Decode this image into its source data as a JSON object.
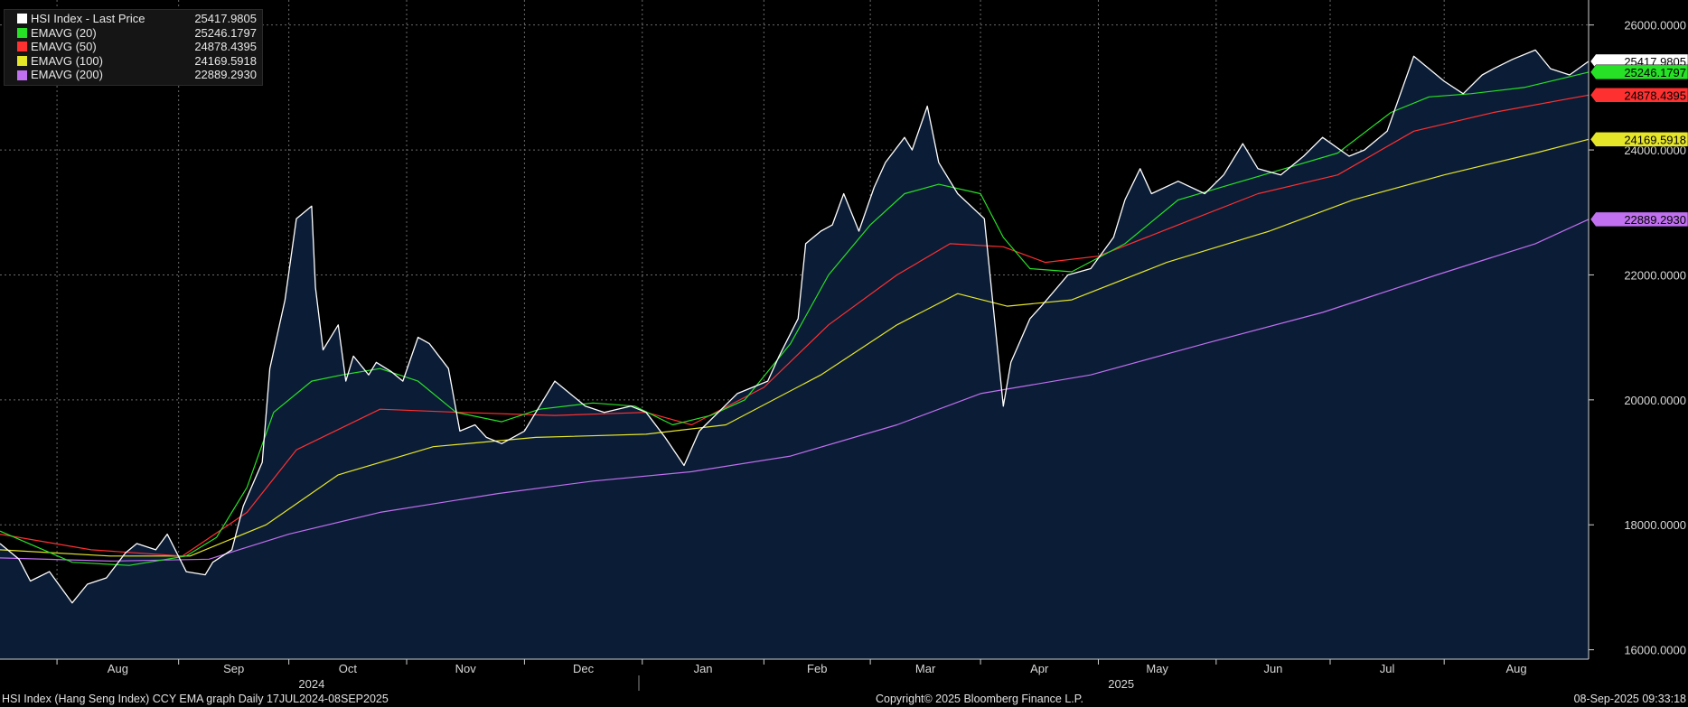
{
  "chart_data": {
    "type": "line",
    "title": "HSI Index (Hang Seng Index) CCY EMA graph  Daily 17JUL2024-08SEP2025",
    "ylim": [
      15850,
      26400
    ],
    "y_ticks": [
      "16000.0000",
      "18000.0000",
      "20000.0000",
      "22000.0000",
      "24000.0000",
      "26000.0000"
    ],
    "y_tick_values": [
      16000,
      18000,
      20000,
      22000,
      24000,
      26000
    ],
    "x_range": [
      "2024-07-17",
      "2025-09-08"
    ],
    "month_ticks": [
      {
        "label": "Aug",
        "date": "2024-08-01"
      },
      {
        "label": "Sep",
        "date": "2024-09-02"
      },
      {
        "label": "Oct",
        "date": "2024-10-01"
      },
      {
        "label": "Nov",
        "date": "2024-11-01"
      },
      {
        "label": "Dec",
        "date": "2024-12-02"
      },
      {
        "label": "Jan",
        "date": "2025-01-02"
      },
      {
        "label": "Feb",
        "date": "2025-02-03"
      },
      {
        "label": "Mar",
        "date": "2025-03-03"
      },
      {
        "label": "Apr",
        "date": "2025-04-01"
      },
      {
        "label": "May",
        "date": "2025-05-02"
      },
      {
        "label": "Jun",
        "date": "2025-06-02"
      },
      {
        "label": "Jul",
        "date": "2025-07-02"
      },
      {
        "label": "Aug",
        "date": "2025-08-01"
      }
    ],
    "year_labels": [
      {
        "label": "2024",
        "date": "2024-10-07"
      },
      {
        "label": "2025",
        "date": "2025-05-08"
      }
    ],
    "grid": true,
    "legend_position": "top-left",
    "series": [
      {
        "name": "HSI Index - Last Price",
        "color": "#ffffff",
        "last": "25417.9805",
        "filled": true,
        "x": [
          "2024-07-17",
          "2024-07-22",
          "2024-07-25",
          "2024-07-30",
          "2024-08-05",
          "2024-08-09",
          "2024-08-14",
          "2024-08-19",
          "2024-08-22",
          "2024-08-27",
          "2024-08-30",
          "2024-09-04",
          "2024-09-09",
          "2024-09-11",
          "2024-09-16",
          "2024-09-19",
          "2024-09-24",
          "2024-09-26",
          "2024-09-30",
          "2024-10-03",
          "2024-10-07",
          "2024-10-08",
          "2024-10-10",
          "2024-10-14",
          "2024-10-16",
          "2024-10-18",
          "2024-10-22",
          "2024-10-24",
          "2024-10-28",
          "2024-10-31",
          "2024-11-04",
          "2024-11-07",
          "2024-11-12",
          "2024-11-15",
          "2024-11-19",
          "2024-11-22",
          "2024-11-26",
          "2024-12-02",
          "2024-12-06",
          "2024-12-10",
          "2024-12-13",
          "2024-12-18",
          "2024-12-23",
          "2024-12-30",
          "2025-01-03",
          "2025-01-08",
          "2025-01-13",
          "2025-01-17",
          "2025-01-22",
          "2025-01-27",
          "2025-02-04",
          "2025-02-07",
          "2025-02-12",
          "2025-02-14",
          "2025-02-18",
          "2025-02-21",
          "2025-02-24",
          "2025-02-28",
          "2025-03-04",
          "2025-03-07",
          "2025-03-12",
          "2025-03-14",
          "2025-03-18",
          "2025-03-21",
          "2025-03-26",
          "2025-04-02",
          "2025-04-07",
          "2025-04-09",
          "2025-04-14",
          "2025-04-17",
          "2025-04-24",
          "2025-04-30",
          "2025-05-06",
          "2025-05-09",
          "2025-05-13",
          "2025-05-16",
          "2025-05-23",
          "2025-05-30",
          "2025-06-04",
          "2025-06-09",
          "2025-06-13",
          "2025-06-19",
          "2025-06-25",
          "2025-06-30",
          "2025-07-07",
          "2025-07-11",
          "2025-07-17",
          "2025-07-24",
          "2025-07-28",
          "2025-08-01",
          "2025-08-06",
          "2025-08-11",
          "2025-08-14",
          "2025-08-19",
          "2025-08-25",
          "2025-08-29",
          "2025-09-03",
          "2025-09-08"
        ],
        "y": [
          17700,
          17450,
          17100,
          17250,
          16750,
          17050,
          17150,
          17550,
          17700,
          17600,
          17850,
          17250,
          17200,
          17400,
          17600,
          18300,
          19000,
          20500,
          21600,
          22900,
          23100,
          21800,
          20800,
          21200,
          20300,
          20700,
          20400,
          20600,
          20450,
          20300,
          21000,
          20900,
          20500,
          19500,
          19600,
          19400,
          19300,
          19500,
          19900,
          20300,
          20150,
          19900,
          19800,
          19900,
          19800,
          19400,
          18950,
          19500,
          19800,
          20100,
          20300,
          20700,
          21300,
          22500,
          22700,
          22800,
          23300,
          22700,
          23400,
          23800,
          24200,
          24000,
          24700,
          23800,
          23300,
          22900,
          19900,
          20600,
          21300,
          21500,
          22000,
          22100,
          22600,
          23200,
          23700,
          23300,
          23500,
          23300,
          23600,
          24100,
          23700,
          23600,
          23900,
          24200,
          23900,
          24000,
          24300,
          25500,
          25300,
          25100,
          24900,
          25200,
          25300,
          25450,
          25600,
          25300,
          25200,
          25418
        ]
      },
      {
        "name": "EMAVG (20)",
        "color": "#27e127",
        "last": "25246.1797",
        "x": [
          "2024-07-17",
          "2024-08-05",
          "2024-08-20",
          "2024-09-04",
          "2024-09-12",
          "2024-09-20",
          "2024-09-27",
          "2024-10-07",
          "2024-10-15",
          "2024-10-25",
          "2024-11-04",
          "2024-11-14",
          "2024-11-26",
          "2024-12-06",
          "2024-12-20",
          "2024-12-31",
          "2025-01-10",
          "2025-01-20",
          "2025-01-29",
          "2025-02-10",
          "2025-02-20",
          "2025-03-03",
          "2025-03-12",
          "2025-03-21",
          "2025-04-01",
          "2025-04-07",
          "2025-04-14",
          "2025-04-25",
          "2025-05-09",
          "2025-05-23",
          "2025-06-06",
          "2025-06-20",
          "2025-07-04",
          "2025-07-18",
          "2025-07-28",
          "2025-08-08",
          "2025-08-22",
          "2025-09-08"
        ],
        "y": [
          17900,
          17400,
          17350,
          17500,
          17800,
          18600,
          19800,
          20300,
          20400,
          20500,
          20300,
          19800,
          19650,
          19850,
          19950,
          19900,
          19600,
          19750,
          20000,
          20900,
          22000,
          22800,
          23300,
          23450,
          23300,
          22600,
          22100,
          22050,
          22500,
          23200,
          23450,
          23700,
          23950,
          24600,
          24850,
          24900,
          25000,
          25246
        ]
      },
      {
        "name": "EMAVG (50)",
        "color": "#ff3030",
        "last": "24878.4395",
        "x": [
          "2024-07-17",
          "2024-08-10",
          "2024-09-03",
          "2024-09-20",
          "2024-10-03",
          "2024-10-25",
          "2024-11-15",
          "2024-12-10",
          "2025-01-03",
          "2025-01-15",
          "2025-02-03",
          "2025-02-20",
          "2025-03-10",
          "2025-03-24",
          "2025-04-07",
          "2025-04-18",
          "2025-05-02",
          "2025-05-23",
          "2025-06-13",
          "2025-07-04",
          "2025-07-24",
          "2025-08-14",
          "2025-09-08"
        ],
        "y": [
          17850,
          17600,
          17500,
          18200,
          19200,
          19850,
          19800,
          19750,
          19800,
          19600,
          20200,
          21200,
          22000,
          22500,
          22450,
          22200,
          22300,
          22800,
          23300,
          23600,
          24300,
          24600,
          24878
        ]
      },
      {
        "name": "EMAVG (100)",
        "color": "#e6e629",
        "last": "24169.5918",
        "x": [
          "2024-07-17",
          "2024-08-15",
          "2024-09-05",
          "2024-09-25",
          "2024-10-14",
          "2024-11-08",
          "2024-12-05",
          "2025-01-03",
          "2025-01-24",
          "2025-02-18",
          "2025-03-10",
          "2025-03-26",
          "2025-04-08",
          "2025-04-25",
          "2025-05-20",
          "2025-06-16",
          "2025-07-08",
          "2025-08-01",
          "2025-08-25",
          "2025-09-08"
        ],
        "y": [
          17600,
          17500,
          17500,
          18000,
          18800,
          19250,
          19400,
          19450,
          19600,
          20400,
          21200,
          21700,
          21500,
          21600,
          22200,
          22700,
          23200,
          23600,
          23950,
          24170
        ]
      },
      {
        "name": "EMAVG (200)",
        "color": "#c070f0",
        "last": "22889.2930",
        "x": [
          "2024-07-17",
          "2024-08-15",
          "2024-09-10",
          "2024-10-01",
          "2024-10-25",
          "2024-11-25",
          "2024-12-20",
          "2025-01-15",
          "2025-02-10",
          "2025-03-10",
          "2025-04-01",
          "2025-04-30",
          "2025-05-30",
          "2025-06-30",
          "2025-07-30",
          "2025-08-25",
          "2025-09-08"
        ],
        "y": [
          17470,
          17420,
          17450,
          17850,
          18200,
          18500,
          18700,
          18850,
          19100,
          19600,
          20100,
          20400,
          20900,
          21400,
          22000,
          22500,
          22889
        ]
      }
    ]
  },
  "footer": {
    "left": "HSI Index (Hang Seng Index) CCY EMA graph  Daily 17JUL2024-08SEP2025",
    "center": "Copyright© 2025 Bloomberg Finance L.P.",
    "right": "08-Sep-2025 09:33:18"
  },
  "colors": {
    "background": "#000000",
    "plot_fill": "#0b1c36",
    "grid": "#6a6a6a",
    "axis_text": "#d8d8d8"
  }
}
